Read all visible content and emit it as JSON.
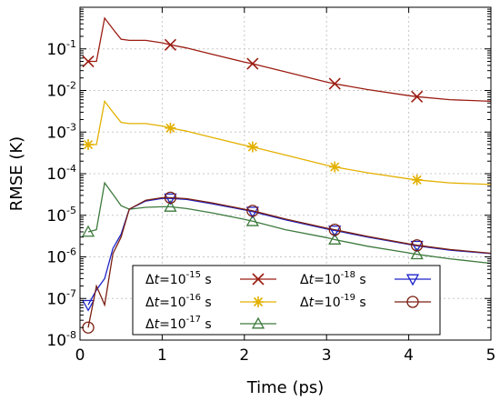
{
  "chart_data": {
    "type": "line",
    "title": "",
    "xlabel": "Time (ps)",
    "ylabel": "RMSE (K)",
    "xlim": [
      0,
      5
    ],
    "ylim": [
      1e-08,
      1
    ],
    "yscale": "log",
    "grid": true,
    "x_ticks": [
      {
        "value": 0,
        "label": "0"
      },
      {
        "value": 1,
        "label": "1"
      },
      {
        "value": 2,
        "label": "2"
      },
      {
        "value": 3,
        "label": "3"
      },
      {
        "value": 4,
        "label": "4"
      },
      {
        "value": 5,
        "label": "5"
      }
    ],
    "y_ticks": [
      {
        "value": 0.1,
        "base": "10",
        "exp": "-1"
      },
      {
        "value": 0.01,
        "base": "10",
        "exp": "-2"
      },
      {
        "value": 0.001,
        "base": "10",
        "exp": "-3"
      },
      {
        "value": 0.0001,
        "base": "10",
        "exp": "-4"
      },
      {
        "value": 1e-05,
        "base": "10",
        "exp": "-5"
      },
      {
        "value": 1e-06,
        "base": "10",
        "exp": "-6"
      },
      {
        "value": 1e-07,
        "base": "10",
        "exp": "-7"
      },
      {
        "value": 1e-08,
        "base": "10",
        "exp": "-8"
      }
    ],
    "legend_position": "bottom-left",
    "series": [
      {
        "name": "Δt=10-15 s",
        "legend": {
          "pre": "Δ",
          "var": "t",
          "eq": "=10",
          "exp": "-15",
          "post": " s"
        },
        "color": "#9b1c12",
        "marker": "x",
        "x": [
          0.1,
          0.2,
          0.3,
          0.4,
          0.5,
          0.6,
          0.8,
          1.0,
          1.1,
          1.3,
          1.6,
          2.0,
          2.1,
          2.5,
          3.0,
          3.1,
          3.5,
          4.0,
          4.1,
          4.5,
          5.0
        ],
        "y": [
          0.05,
          0.05,
          0.55,
          0.3,
          0.17,
          0.16,
          0.16,
          0.14,
          0.125,
          0.105,
          0.075,
          0.048,
          0.044,
          0.028,
          0.016,
          0.0145,
          0.0105,
          0.0075,
          0.0071,
          0.006,
          0.0055
        ],
        "marker_x": [
          0.1,
          1.1,
          2.1,
          3.1,
          4.1
        ],
        "marker_y": [
          0.05,
          0.125,
          0.044,
          0.0145,
          0.0071
        ]
      },
      {
        "name": "Δt=10-16 s",
        "legend": {
          "pre": "Δ",
          "var": "t",
          "eq": "=10",
          "exp": "-16",
          "post": " s"
        },
        "color": "#e3b000",
        "marker": "asterisk",
        "x": [
          0.1,
          0.2,
          0.3,
          0.4,
          0.5,
          0.6,
          0.8,
          1.0,
          1.1,
          1.3,
          1.6,
          2.0,
          2.1,
          2.5,
          3.0,
          3.1,
          3.5,
          4.0,
          4.1,
          4.5,
          5.0
        ],
        "y": [
          0.0005,
          0.0005,
          0.0055,
          0.003,
          0.0017,
          0.0016,
          0.0016,
          0.0014,
          0.00125,
          0.00105,
          0.00075,
          0.00048,
          0.00044,
          0.00028,
          0.00016,
          0.000145,
          0.000105,
          7.5e-05,
          7.1e-05,
          6e-05,
          5.5e-05
        ],
        "marker_x": [
          0.1,
          1.1,
          2.1,
          3.1,
          4.1
        ],
        "marker_y": [
          0.0005,
          0.00125,
          0.00044,
          0.000145,
          7.1e-05
        ]
      },
      {
        "name": "Δt=10-17 s",
        "legend": {
          "pre": "Δ",
          "var": "t",
          "eq": "=10",
          "exp": "-17",
          "post": " s"
        },
        "color": "#3d7a3d",
        "marker": "triangle-up",
        "x": [
          0.1,
          0.2,
          0.3,
          0.4,
          0.5,
          0.6,
          0.8,
          1.0,
          1.1,
          1.3,
          1.6,
          2.0,
          2.1,
          2.5,
          3.0,
          3.1,
          3.5,
          4.0,
          4.1,
          4.5,
          5.0
        ],
        "y": [
          4e-06,
          4.5e-06,
          6e-05,
          3.2e-05,
          1.7e-05,
          1.4e-05,
          1.55e-05,
          1.6e-05,
          1.6e-05,
          1.45e-05,
          1.15e-05,
          8e-06,
          7.2e-06,
          4.5e-06,
          2.9e-06,
          2.6e-06,
          1.8e-06,
          1.25e-06,
          1.15e-06,
          9e-07,
          7e-07
        ],
        "marker_x": [
          0.1,
          1.1,
          2.1,
          3.1,
          4.1
        ],
        "marker_y": [
          4e-06,
          1.6e-05,
          7.2e-06,
          2.6e-06,
          1.15e-06
        ]
      },
      {
        "name": "Δt=10-18 s",
        "legend": {
          "pre": "Δ",
          "var": "t",
          "eq": "=10",
          "exp": "-18",
          "post": " s"
        },
        "color": "#1c22c8",
        "marker": "triangle-down",
        "x": [
          0.1,
          0.2,
          0.3,
          0.4,
          0.5,
          0.6,
          0.8,
          1.0,
          1.1,
          1.3,
          1.6,
          2.0,
          2.1,
          2.5,
          3.0,
          3.1,
          3.5,
          4.0,
          4.1,
          4.5,
          5.0
        ],
        "y": [
          7e-08,
          1.6e-07,
          3e-07,
          1.6e-06,
          3.5e-06,
          1.4e-05,
          2.2e-05,
          2.55e-05,
          2.55e-05,
          2.4e-05,
          1.9e-05,
          1.35e-05,
          1.22e-05,
          7.8e-06,
          4.7e-06,
          4.3e-06,
          3e-06,
          2e-06,
          1.85e-06,
          1.45e-06,
          1.2e-06
        ],
        "marker_x": [
          0.1,
          1.1,
          2.1,
          3.1,
          4.1
        ],
        "marker_y": [
          7e-08,
          2.55e-05,
          1.22e-05,
          4.3e-06,
          1.85e-06
        ]
      },
      {
        "name": "Δt=10-19 s",
        "legend": {
          "pre": "Δ",
          "var": "t",
          "eq": "=10",
          "exp": "-19",
          "post": " s"
        },
        "color": "#7a1f10",
        "marker": "circle",
        "x": [
          0.1,
          0.2,
          0.3,
          0.4,
          0.5,
          0.6,
          0.8,
          1.0,
          1.1,
          1.3,
          1.6,
          2.0,
          2.1,
          2.5,
          3.0,
          3.1,
          3.5,
          4.0,
          4.1,
          4.5,
          5.0
        ],
        "y": [
          2e-08,
          2e-07,
          7e-08,
          1.2e-06,
          3e-06,
          1.4e-05,
          2.3e-05,
          2.65e-05,
          2.65e-05,
          2.5e-05,
          2e-05,
          1.4e-05,
          1.28e-05,
          8.1e-06,
          4.9e-06,
          4.5e-06,
          3.1e-06,
          2.05e-06,
          1.9e-06,
          1.5e-06,
          1.22e-06
        ],
        "marker_x": [
          0.1,
          1.1,
          2.1,
          3.1,
          4.1
        ],
        "marker_y": [
          2e-08,
          2.65e-05,
          1.28e-05,
          4.5e-06,
          1.9e-06
        ]
      }
    ]
  }
}
